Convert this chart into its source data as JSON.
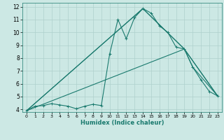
{
  "xlabel": "Humidex (Indice chaleur)",
  "xlim": [
    -0.5,
    23.5
  ],
  "ylim": [
    3.8,
    12.3
  ],
  "yticks": [
    4,
    5,
    6,
    7,
    8,
    9,
    10,
    11,
    12
  ],
  "xticks": [
    0,
    1,
    2,
    3,
    4,
    5,
    6,
    7,
    8,
    9,
    10,
    11,
    12,
    13,
    14,
    15,
    16,
    17,
    18,
    19,
    20,
    21,
    22,
    23
  ],
  "bg_color": "#cce8e4",
  "grid_color": "#aed0cc",
  "line_color": "#1a7a6e",
  "line1_x": [
    0,
    1,
    2,
    3,
    4,
    5,
    6,
    7,
    8,
    9,
    10,
    11,
    12,
    13,
    14,
    15,
    16,
    17,
    18,
    19,
    20,
    21,
    22,
    23
  ],
  "line1_y": [
    3.9,
    4.25,
    4.3,
    4.45,
    4.35,
    4.25,
    4.05,
    4.25,
    4.4,
    4.3,
    8.3,
    11.0,
    9.5,
    11.15,
    11.85,
    11.5,
    10.5,
    10.0,
    8.85,
    8.7,
    7.3,
    6.3,
    5.4,
    5.05
  ],
  "line2_x": [
    0,
    14,
    19,
    20,
    23
  ],
  "line2_y": [
    3.9,
    11.85,
    8.7,
    7.3,
    5.05
  ],
  "line3_x": [
    0,
    14,
    19,
    23
  ],
  "line3_y": [
    3.9,
    11.85,
    8.7,
    5.05
  ],
  "line4_x": [
    0,
    19,
    23
  ],
  "line4_y": [
    3.9,
    8.7,
    5.05
  ]
}
